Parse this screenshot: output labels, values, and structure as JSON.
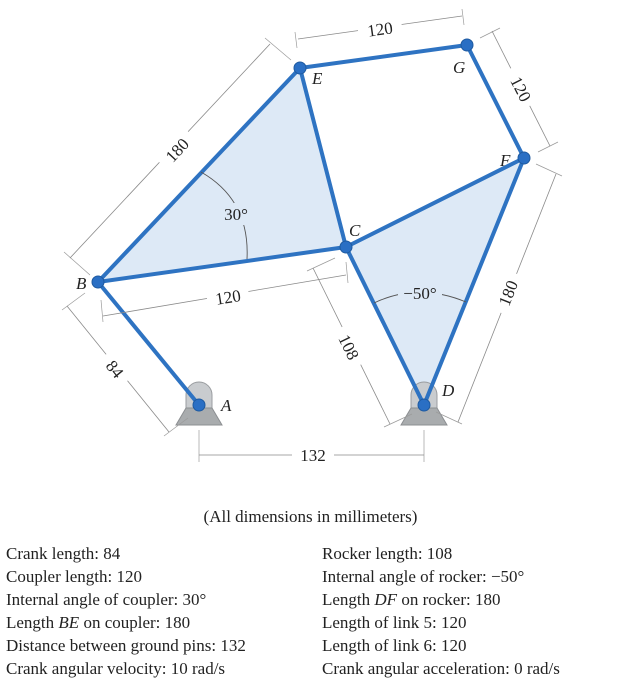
{
  "diagram": {
    "points": {
      "A": "A",
      "B": "B",
      "C": "C",
      "D": "D",
      "E": "E",
      "F": "F",
      "G": "G"
    },
    "dimensions": {
      "EG": "120",
      "GF": "120",
      "BE": "180",
      "BC": "120",
      "CD": "108",
      "DF": "180",
      "AB": "84",
      "AD": "132"
    },
    "angles": {
      "coupler": "30°",
      "rocker": "−50°"
    },
    "colors": {
      "link": "#2e73c2",
      "triangle_fill": "#dde9f6",
      "joint": "#2a6fc4"
    }
  },
  "note": "(All dimensions in millimeters)",
  "specs": {
    "left": [
      {
        "text": "Crank length: 84"
      },
      {
        "text": "Coupler length: 120"
      },
      {
        "text": "Internal angle of coupler: 30°"
      },
      {
        "pre": "Length ",
        "em": "BE",
        "post": " on coupler: 180"
      },
      {
        "text": "Distance between ground pins: 132"
      },
      {
        "text": "Crank angular velocity: 10 rad/s"
      }
    ],
    "right": [
      {
        "text": "Rocker length: 108"
      },
      {
        "text": "Internal angle of rocker: −50°"
      },
      {
        "pre": "Length ",
        "em": "DF",
        "post": " on rocker: 180"
      },
      {
        "text": "Length of link 5: 120"
      },
      {
        "text": "Length of link 6: 120"
      },
      {
        "text": "Crank angular acceleration: 0 rad/s"
      }
    ]
  }
}
